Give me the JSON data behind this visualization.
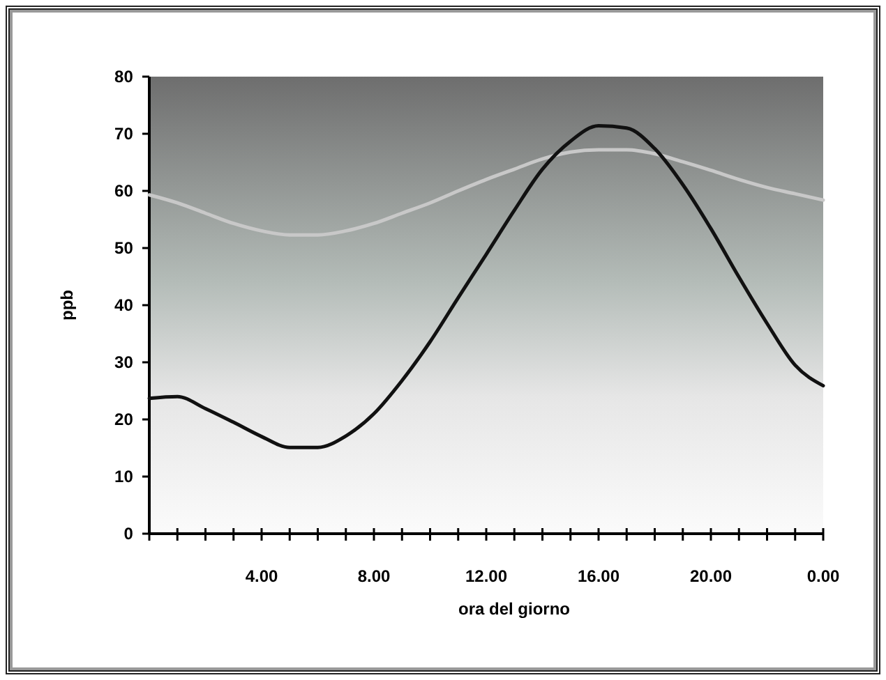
{
  "chart_data": {
    "type": "line",
    "xlabel": "ora del giorno",
    "ylabel": "ppb",
    "categories": [
      null,
      null,
      null,
      null,
      "4.00",
      null,
      null,
      null,
      "8.00",
      null,
      null,
      null,
      "12.00",
      null,
      null,
      null,
      "16.00",
      null,
      null,
      null,
      "20.00",
      null,
      null,
      null,
      "0.00"
    ],
    "series": [
      {
        "color": "#c8c8c8",
        "values": [
          59.3,
          57.9,
          56.1,
          54.3,
          53,
          52.3,
          52.3,
          53,
          54.3,
          56.1,
          57.9,
          60,
          62,
          63.8,
          65.6,
          66.8,
          67.2,
          67.2,
          66.5,
          65.1,
          63.6,
          62,
          60.6,
          59.5,
          58.4
        ]
      },
      {
        "color": "#111111",
        "values": [
          23.7,
          24,
          21.9,
          19.5,
          17,
          15.1,
          15.1,
          17.1,
          21,
          26.8,
          33.6,
          41.3,
          48.9,
          56.6,
          63.8,
          68.7,
          71.4,
          71,
          67.4,
          61.1,
          53.4,
          44.9,
          36.8,
          29.5,
          25.9
        ]
      }
    ],
    "ylim": [
      0,
      80
    ],
    "yticks": [
      0,
      10,
      20,
      30,
      40,
      50,
      60,
      70,
      80
    ],
    "grid": false,
    "marker": "none",
    "line_style": "solid"
  }
}
